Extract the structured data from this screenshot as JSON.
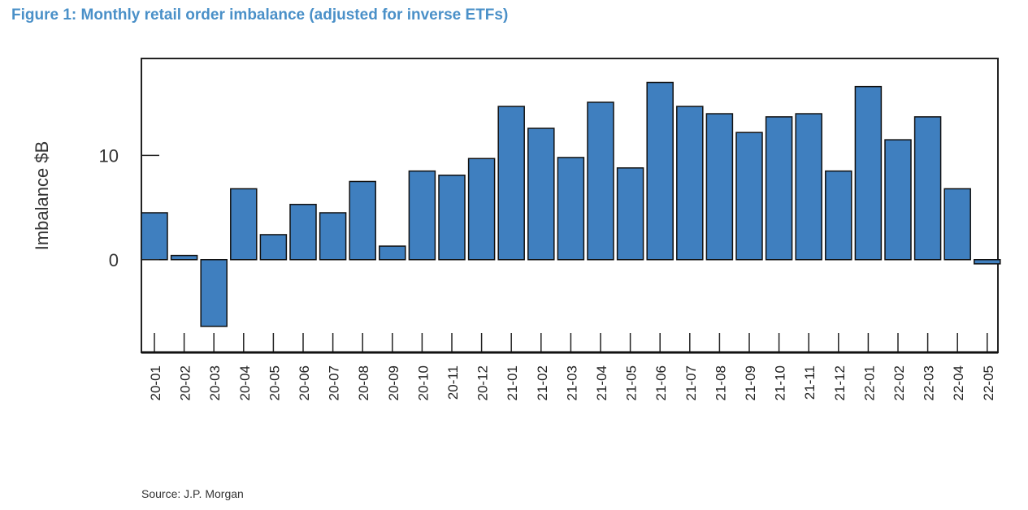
{
  "figure_title": "Figure 1: Monthly retail order imbalance (adjusted for inverse ETFs)",
  "source": "Source: J.P. Morgan",
  "chart_data": {
    "type": "bar",
    "title": "Figure 1: Monthly retail order imbalance (adjusted for inverse ETFs)",
    "xlabel": "",
    "ylabel": "Imbalance $B",
    "ylim": [
      -8.9,
      19.3
    ],
    "yticks": [
      0,
      10
    ],
    "grid": false,
    "bar_color": "#3f7fbf",
    "categories": [
      "20-01",
      "20-02",
      "20-03",
      "20-04",
      "20-05",
      "20-06",
      "20-07",
      "20-08",
      "20-09",
      "20-10",
      "20-11",
      "20-12",
      "21-01",
      "21-02",
      "21-03",
      "21-04",
      "21-05",
      "21-06",
      "21-07",
      "21-08",
      "21-09",
      "21-10",
      "21-11",
      "21-12",
      "22-01",
      "22-02",
      "22-03",
      "22-04",
      "22-05"
    ],
    "values": [
      4.5,
      0.4,
      -6.4,
      6.8,
      2.4,
      5.3,
      4.5,
      7.5,
      1.3,
      8.5,
      8.1,
      9.7,
      14.7,
      12.6,
      9.8,
      15.1,
      8.8,
      17.0,
      14.7,
      14.0,
      12.2,
      13.7,
      14.0,
      8.5,
      16.6,
      11.5,
      13.7,
      6.8,
      -0.4
    ]
  }
}
